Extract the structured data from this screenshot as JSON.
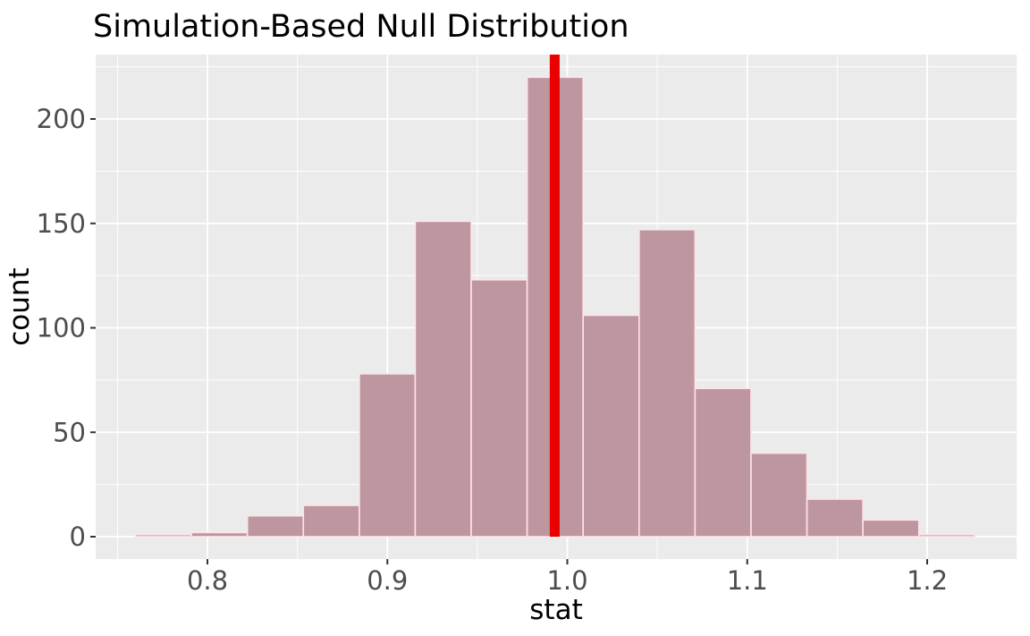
{
  "title": "Simulation-Based Null Distribution",
  "chart_data": {
    "type": "bar",
    "subtype": "histogram",
    "title": "Simulation-Based Null Distribution",
    "xlabel": "stat",
    "ylabel": "count",
    "bin_start": 0.76,
    "bin_width": 0.0311,
    "counts": [
      1,
      2,
      10,
      15,
      78,
      151,
      123,
      220,
      106,
      147,
      71,
      40,
      18,
      8,
      1
    ],
    "bin_left_edges": [
      0.76,
      0.791,
      0.822,
      0.853,
      0.884,
      0.915,
      0.947,
      0.978,
      1.009,
      1.04,
      1.071,
      1.102,
      1.133,
      1.164,
      1.195
    ],
    "observed_stat": 0.993,
    "x_axis": {
      "ticks": [
        0.8,
        0.9,
        1.0,
        1.1,
        1.2
      ],
      "labels": [
        "0.8",
        "0.9",
        "1.0",
        "1.1",
        "1.2"
      ],
      "minor": [
        0.75,
        0.85,
        0.95,
        1.05,
        1.15,
        1.25
      ],
      "lim": [
        0.737,
        1.25
      ]
    },
    "y_axis": {
      "ticks": [
        0,
        50,
        100,
        150,
        200
      ],
      "labels": [
        "0",
        "50",
        "100",
        "150",
        "200"
      ],
      "minor": [
        25,
        75,
        125,
        175,
        225
      ],
      "lim": [
        -11,
        231
      ]
    },
    "legend": "none",
    "grid": "on",
    "colors": {
      "panel_bg": "#EBEBEB",
      "grid_major": "#FFFFFF",
      "grid_minor": "#FFFFFF",
      "bar_fill": "#BE96A0",
      "bar_stroke": "#FFE4E8",
      "observed_line": "#EB0000",
      "tick_mark": "#333333",
      "tick_text": "#4D4D4D",
      "title_text": "#000000"
    }
  }
}
